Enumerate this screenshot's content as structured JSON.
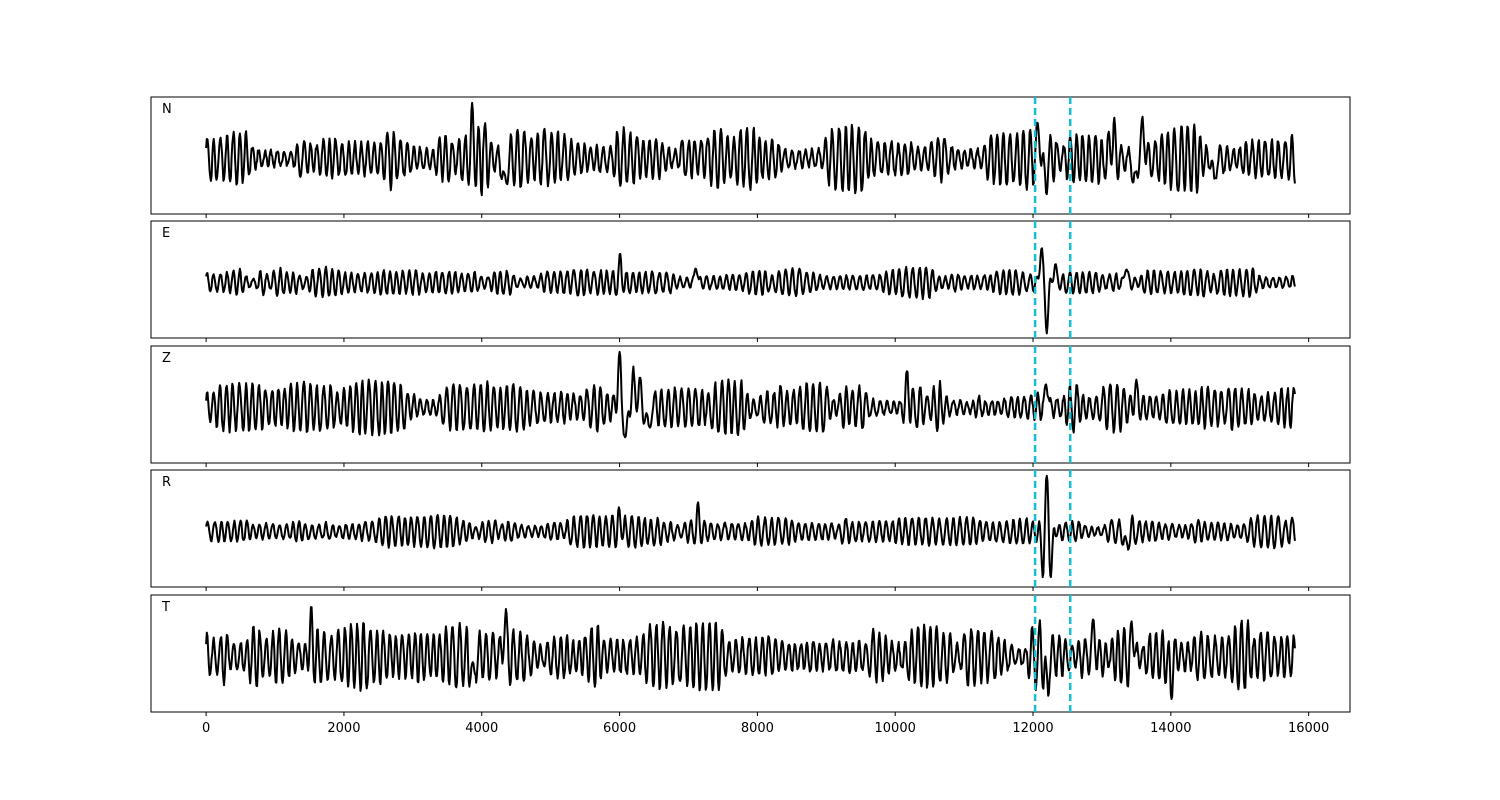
{
  "chart_data": {
    "type": "line",
    "panels": [
      {
        "label": "N",
        "seed": 11,
        "amp": 0.5,
        "events": [
          {
            "x": 3870,
            "a": 0.55
          },
          {
            "x": 4330,
            "a": -0.65
          },
          {
            "x": 12080,
            "a": 0.55
          },
          {
            "x": 12180,
            "a": -0.45
          },
          {
            "x": 13150,
            "a": 0.45
          },
          {
            "x": 13470,
            "a": -0.55
          },
          {
            "x": 13600,
            "a": 0.65
          },
          {
            "x": 14630,
            "a": -0.45
          }
        ]
      },
      {
        "label": "E",
        "seed": 23,
        "amp": 0.22,
        "events": [
          {
            "x": 6010,
            "a": 0.32
          },
          {
            "x": 7110,
            "a": 0.3
          },
          {
            "x": 12120,
            "a": 0.58
          },
          {
            "x": 12200,
            "a": -0.78
          },
          {
            "x": 12320,
            "a": 0.3
          },
          {
            "x": 13350,
            "a": 0.28
          }
        ]
      },
      {
        "label": "Z",
        "seed": 37,
        "amp": 0.38,
        "events": [
          {
            "x": 5990,
            "a": 0.82
          },
          {
            "x": 6100,
            "a": -0.62
          },
          {
            "x": 6190,
            "a": 0.55
          },
          {
            "x": 6280,
            "a": 0.45
          },
          {
            "x": 6420,
            "a": -0.48
          },
          {
            "x": 10180,
            "a": 0.45
          },
          {
            "x": 12200,
            "a": 0.45
          },
          {
            "x": 13490,
            "a": 0.35
          }
        ]
      },
      {
        "label": "R",
        "seed": 53,
        "amp": 0.22,
        "events": [
          {
            "x": 6010,
            "a": 0.3
          },
          {
            "x": 7140,
            "a": 0.3
          },
          {
            "x": 12140,
            "a": -0.6
          },
          {
            "x": 12200,
            "a": 0.82
          },
          {
            "x": 12260,
            "a": -0.7
          },
          {
            "x": 13350,
            "a": -0.35
          }
        ]
      },
      {
        "label": "T",
        "seed": 71,
        "amp": 0.5,
        "events": [
          {
            "x": 1520,
            "a": 0.52
          },
          {
            "x": 3870,
            "a": -0.55
          },
          {
            "x": 4330,
            "a": 0.7
          },
          {
            "x": 12200,
            "a": -0.7
          },
          {
            "x": 12880,
            "a": 0.52
          },
          {
            "x": 13450,
            "a": 0.45
          },
          {
            "x": 14000,
            "a": -0.5
          }
        ]
      }
    ],
    "x_range": [
      0,
      15800
    ],
    "xlim": [
      -800,
      16600
    ],
    "x_ticks": [
      0,
      2000,
      4000,
      6000,
      8000,
      10000,
      12000,
      14000,
      16000
    ],
    "x_tick_labels": [
      "0",
      "2000",
      "4000",
      "6000",
      "8000",
      "10000",
      "12000",
      "14000",
      "16000"
    ],
    "vlines": [
      12030,
      12540
    ],
    "vline_color": "#17becf",
    "line_color": "#000000",
    "grid": false
  }
}
